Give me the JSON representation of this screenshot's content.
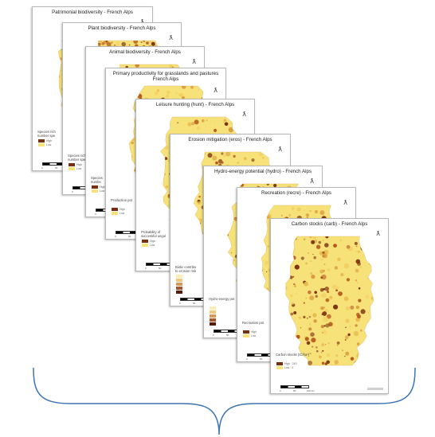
{
  "cards": [
    {
      "id": "patrimonial",
      "title": "Patrimonial biodiversity - French Alps",
      "legend": "Species rich\nnumber spe",
      "legend_items": [
        "High",
        "Low"
      ]
    },
    {
      "id": "plant",
      "title": "Plant biodiversity - French Alps",
      "legend": "Species rich\nnumber spe",
      "legend_items": [
        "High",
        "Low"
      ]
    },
    {
      "id": "animal",
      "title": "Animal biodiversity - French Alps",
      "legend": "Species\nnumbe",
      "legend_items": [
        "High",
        "Low"
      ]
    },
    {
      "id": "productivity",
      "title": "Primary productivity for grasslands and pastures\nFrench Alps",
      "legend": "Production pot",
      "legend_items": [
        "High",
        "Low"
      ]
    },
    {
      "id": "hunt",
      "title": "Leisure hunting (hunt) - French Alps",
      "legend": "Probability of\nsuccessful ungul",
      "legend_items": [
        "High",
        "Low"
      ]
    },
    {
      "id": "eros",
      "title": "Erosion mitigation (eros) - French Alps",
      "legend": "Biotic contribu\nto erosion risk",
      "legend_items": [
        "",
        "",
        "",
        "",
        ""
      ]
    },
    {
      "id": "hydro",
      "title": "Hydro-energy potential (hydro) - French Alps",
      "legend": "Hydro-energy pot",
      "legend_items": [
        "",
        "",
        "",
        "",
        ""
      ]
    },
    {
      "id": "recre",
      "title": "Recreation (recre) - French Alps",
      "legend": "Recreation pot",
      "legend_items": [
        "High",
        "Low"
      ]
    },
    {
      "id": "carb",
      "title": "Carbon stocks (carb) - French Alps",
      "legend": "Carbon stocks (tC/ha¹)",
      "legend_items": [
        "High : 240",
        "Low : 0"
      ]
    }
  ],
  "north_symbol": "ƛ",
  "scale_labels": [
    "0",
    "50",
    "100 km"
  ],
  "colors": {
    "map_light": "#f7e27a",
    "map_mid": "#e8b84a",
    "map_dark": "#7a2e10",
    "brace": "#3f74b5"
  }
}
